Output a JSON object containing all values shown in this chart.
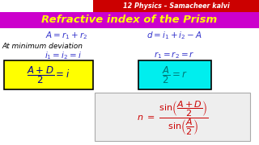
{
  "bg_color": "#ffffff",
  "header_bg": "#cc0000",
  "header_text": "12 Physics – Samacheer kalvi",
  "header_text_color": "#ffffff",
  "title_text": "Refractive index of the Prism",
  "title_color": "#ffff00",
  "title_bg": "#cc00cc",
  "eq1": "$A = r_1 + r_2$",
  "eq2": "$d = i_1 + i_2 - A$",
  "eq_color": "#3333cc",
  "min_dev_text": "At minimum deviation",
  "min_dev_color": "#000000",
  "eq3": "$i_1 = i_2 = i$",
  "eq4": "$r_1 = r_2 = r$",
  "box1_bg": "#ffff00",
  "box1_border": "#000000",
  "box1_eq": "$\\dfrac{A+D}{2} = i$",
  "box1_eq_color": "#000099",
  "box2_bg": "#00eeee",
  "box2_border": "#000000",
  "box2_eq": "$\\dfrac{A}{2} = r$",
  "box2_eq_color": "#007777",
  "final_box_bg": "#eeeeee",
  "final_box_border": "#aaaaaa",
  "final_eq_color": "#cc0000",
  "final_eq": "$n \\ = \\ \\dfrac{\\sin\\!\\left(\\dfrac{A+D}{2}\\right)}{\\sin\\!\\left(\\dfrac{A}{2}\\right)}$"
}
